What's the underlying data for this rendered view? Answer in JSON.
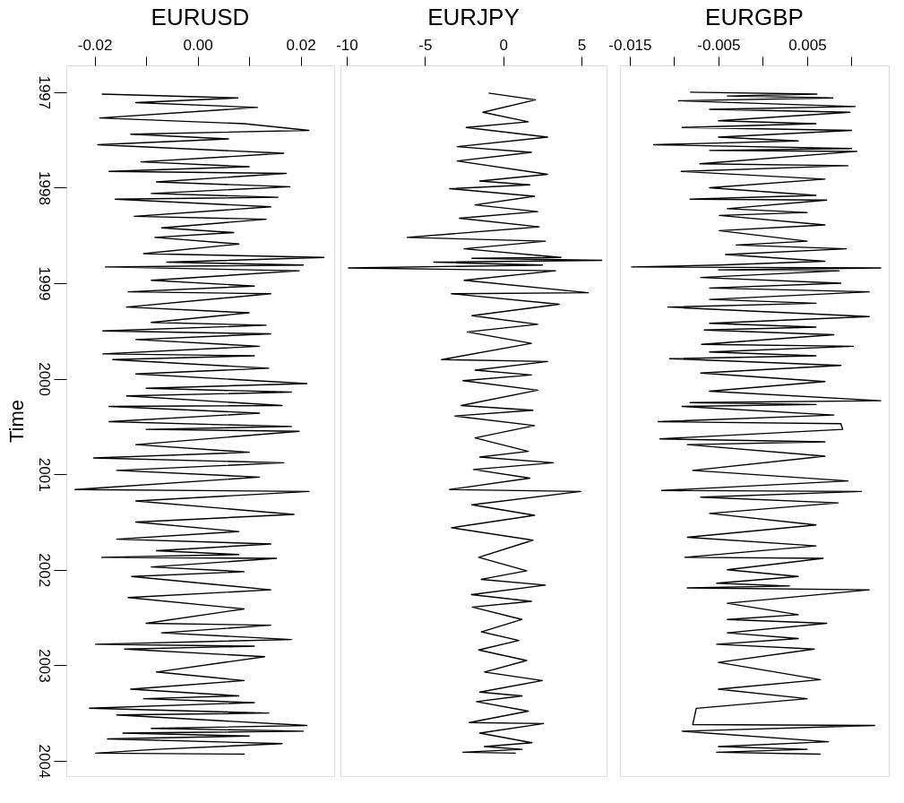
{
  "chart_data": [
    {
      "type": "line",
      "orientation": "horizontal",
      "title": "EURUSD",
      "ylabel": "Time",
      "color": "#000000",
      "grid": false,
      "x": [
        1997.02,
        1997.06,
        1997.11,
        1997.16,
        1997.27,
        1997.33,
        1997.4,
        1997.44,
        1997.49,
        1997.55,
        1997.64,
        1997.73,
        1997.78,
        1997.83,
        1997.85,
        1997.94,
        1997.99,
        1998.06,
        1998.1,
        1998.12,
        1998.2,
        1998.3,
        1998.33,
        1998.42,
        1998.47,
        1998.52,
        1998.59,
        1998.69,
        1998.73,
        1998.78,
        1998.81,
        1998.83,
        1998.87,
        1998.97,
        1999.03,
        1999.09,
        1999.11,
        1999.25,
        1999.31,
        1999.41,
        1999.44,
        1999.5,
        1999.53,
        1999.59,
        1999.66,
        1999.74,
        1999.76,
        1999.8,
        1999.89,
        1999.95,
        2000.05,
        2000.1,
        2000.14,
        2000.18,
        2000.28,
        2000.29,
        2000.36,
        2000.45,
        2000.5,
        2000.53,
        2000.55,
        2000.69,
        2000.77,
        2000.83,
        2000.88,
        2000.96,
        2001.03,
        2001.16,
        2001.18,
        2001.28,
        2001.42,
        2001.5,
        2001.6,
        2001.68,
        2001.73,
        2001.8,
        2001.84,
        2001.87,
        2001.88,
        2001.97,
        2002.02,
        2002.07,
        2002.21,
        2002.29,
        2002.41,
        2002.56,
        2002.58,
        2002.66,
        2002.73,
        2002.78,
        2002.8,
        2002.83,
        2002.91,
        2003.07,
        2003.16,
        2003.25,
        2003.32,
        2003.35,
        2003.39,
        2003.45,
        2003.5,
        2003.52,
        2003.63,
        2003.66,
        2003.69,
        2003.71,
        2003.74,
        2003.77,
        2003.82,
        2003.88,
        2003.92,
        2003.93
      ],
      "values": [
        -0.0186,
        0.0078,
        -0.012,
        0.0116,
        -0.019,
        0.009,
        0.0216,
        -0.013,
        0.006,
        -0.0194,
        0.0167,
        -0.011,
        0.01,
        -0.0172,
        0.0172,
        -0.008,
        0.0179,
        -0.009,
        0.0156,
        -0.016,
        0.0142,
        -0.0123,
        0.0133,
        -0.007,
        0.007,
        -0.0083,
        0.008,
        -0.0105,
        0.0245,
        -0.006,
        0.0205,
        -0.0179,
        0.0197,
        -0.009,
        0.011,
        -0.0135,
        0.0142,
        -0.0138,
        0.01,
        -0.009,
        0.0133,
        -0.0184,
        0.0142,
        -0.012,
        0.012,
        -0.0184,
        0.011,
        -0.0165,
        0.0138,
        -0.012,
        0.0212,
        -0.01,
        0.0182,
        -0.0138,
        0.0164,
        -0.0172,
        0.012,
        -0.0172,
        0.0182,
        -0.01,
        0.0197,
        -0.012,
        0.01,
        -0.0202,
        0.0167,
        -0.0157,
        0.012,
        -0.0238,
        0.0216,
        -0.012,
        0.0187,
        -0.012,
        0.008,
        -0.0157,
        0.0142,
        -0.008,
        0.008,
        -0.0186,
        0.0153,
        -0.009,
        0.009,
        -0.0128,
        0.0142,
        -0.0135,
        0.009,
        -0.01,
        0.0142,
        -0.007,
        0.0182,
        -0.0198,
        0.011,
        -0.0142,
        0.013,
        -0.008,
        0.009,
        -0.013,
        0.008,
        -0.0105,
        0.011,
        -0.021,
        0.0138,
        -0.0157,
        0.0212,
        -0.009,
        0.0205,
        -0.0145,
        0.01,
        -0.0175,
        0.0164,
        -0.008,
        -0.0198,
        0.0091
      ],
      "xlim": [
        -0.0255,
        0.0265
      ],
      "xticks": [
        {
          "value": -0.02,
          "label": "-0.02"
        },
        {
          "value": -0.01,
          "label": null
        },
        {
          "value": 0,
          "label": "0.00"
        },
        {
          "value": 0.01,
          "label": null
        },
        {
          "value": 0.02,
          "label": "0.02"
        }
      ],
      "ylim": [
        2004.16,
        1996.72
      ],
      "yticks": [
        1997,
        1998,
        1999,
        2000,
        2001,
        2002,
        2003,
        2004
      ]
    },
    {
      "type": "line",
      "orientation": "horizontal",
      "title": "EURJPY",
      "color": "#000000",
      "grid": false,
      "tick_labels": "x",
      "x": [
        1997.01,
        1997.08,
        1997.21,
        1997.31,
        1997.37,
        1997.47,
        1997.57,
        1997.63,
        1997.72,
        1997.86,
        1997.93,
        1997.97,
        1998.01,
        1998.09,
        1998.18,
        1998.25,
        1998.32,
        1998.41,
        1998.52,
        1998.56,
        1998.64,
        1998.73,
        1998.74,
        1998.76,
        1998.78,
        1998.81,
        1998.84,
        1998.87,
        1998.97,
        1999.1,
        1999.11,
        1999.22,
        1999.34,
        1999.43,
        1999.51,
        1999.63,
        1999.8,
        1999.82,
        1999.91,
        1999.96,
        2000.02,
        2000.12,
        2000.28,
        2000.33,
        2000.39,
        2000.49,
        2000.62,
        2000.76,
        2000.82,
        2000.88,
        2000.95,
        2001.04,
        2001.16,
        2001.18,
        2001.32,
        2001.43,
        2001.56,
        2001.69,
        2001.87,
        2002.01,
        2002.1,
        2002.16,
        2002.26,
        2002.33,
        2002.39,
        2002.52,
        2002.65,
        2002.74,
        2002.84,
        2002.95,
        2003.07,
        2003.16,
        2003.28,
        2003.32,
        2003.38,
        2003.48,
        2003.6,
        2003.61,
        2003.71,
        2003.81,
        2003.85,
        2003.88,
        2003.91,
        2003.92
      ],
      "values": [
        -0.94,
        2.06,
        -1.3,
        1.6,
        -2.37,
        2.83,
        -2.94,
        1.8,
        -2.94,
        2.83,
        -1.5,
        1.7,
        -3.43,
        2.0,
        -1.8,
        2.2,
        -2.8,
        2.3,
        -6.14,
        2.69,
        -2.5,
        3.69,
        -2.0,
        6.29,
        -4.43,
        2.5,
        -9.89,
        3.34,
        -2.5,
        5.43,
        -3.31,
        3.57,
        -2.0,
        2.2,
        -2.29,
        1.8,
        -3.94,
        2.83,
        -1.8,
        1.8,
        -2.57,
        2.2,
        -2.69,
        1.9,
        -3.09,
        2.0,
        -1.8,
        1.6,
        -1.5,
        3.2,
        -1.9,
        1.7,
        -3.43,
        4.94,
        -2.0,
        2.0,
        -3.31,
        1.9,
        -1.57,
        1.5,
        -1.4,
        2.69,
        -2.03,
        1.8,
        -1.97,
        1.2,
        -1.4,
        1.0,
        -1.57,
        1.5,
        -1.2,
        2.49,
        -1.5,
        1.2,
        -1.71,
        1.6,
        -2.17,
        2.57,
        -1.5,
        1.83,
        -1.2,
        1.2,
        -2.57,
        0.8
      ],
      "xlim": [
        -10.4,
        6.6
      ],
      "xticks": [
        -10,
        -5,
        0,
        5
      ],
      "ylim": [
        2004.16,
        1996.72
      ]
    },
    {
      "type": "line",
      "orientation": "horizontal",
      "title": "EURGBP",
      "color": "#000000",
      "grid": false,
      "tick_labels": "x",
      "x": [
        1997.0,
        1997.02,
        1997.04,
        1997.06,
        1997.09,
        1997.15,
        1997.18,
        1997.21,
        1997.3,
        1997.33,
        1997.37,
        1997.4,
        1997.47,
        1997.51,
        1997.55,
        1997.59,
        1997.61,
        1997.62,
        1997.75,
        1997.77,
        1997.83,
        1997.91,
        1998.0,
        1998.08,
        1998.12,
        1998.13,
        1998.22,
        1998.26,
        1998.29,
        1998.39,
        1998.45,
        1998.56,
        1998.6,
        1998.64,
        1998.7,
        1998.77,
        1998.81,
        1998.83,
        1998.84,
        1998.86,
        1998.87,
        1998.94,
        1999.0,
        1999.05,
        1999.09,
        1999.17,
        1999.21,
        1999.25,
        1999.35,
        1999.42,
        1999.46,
        1999.49,
        1999.54,
        1999.64,
        1999.66,
        1999.72,
        1999.76,
        1999.79,
        1999.86,
        1999.94,
        2000.03,
        2000.13,
        2000.23,
        2000.25,
        2000.27,
        2000.29,
        2000.38,
        2000.45,
        2000.47,
        2000.53,
        2000.63,
        2000.66,
        2000.69,
        2000.81,
        2000.96,
        2001.07,
        2001.17,
        2001.18,
        2001.24,
        2001.3,
        2001.41,
        2001.53,
        2001.66,
        2001.75,
        2001.87,
        2001.88,
        2002.0,
        2002.07,
        2002.14,
        2002.17,
        2002.19,
        2002.21,
        2002.35,
        2002.47,
        2002.52,
        2002.56,
        2002.66,
        2002.72,
        2002.78,
        2002.83,
        2002.97,
        2003.15,
        2003.25,
        2003.35,
        2003.45,
        2003.62,
        2003.63,
        2003.69,
        2003.8,
        2003.85,
        2003.88,
        2003.91,
        2003.93
      ],
      "values": [
        -0.0082,
        0.0061,
        -0.004,
        0.0079,
        -0.0095,
        0.0104,
        -0.006,
        0.0098,
        -0.005,
        0.006,
        -0.0091,
        0.01,
        -0.005,
        0.004,
        -0.0123,
        0.01,
        -0.006,
        0.0106,
        -0.0071,
        0.0096,
        -0.0092,
        0.007,
        -0.006,
        0.006,
        -0.0082,
        0.0072,
        -0.004,
        0.005,
        -0.0049,
        0.007,
        -0.0049,
        0.005,
        -0.003,
        0.0094,
        -0.0042,
        0.007,
        -0.005,
        -0.0148,
        0.0133,
        -0.005,
        0.0086,
        -0.007,
        0.0088,
        -0.006,
        0.012,
        -0.006,
        0.006,
        -0.0107,
        0.012,
        -0.006,
        0.006,
        -0.0066,
        0.008,
        -0.0069,
        0.0102,
        -0.006,
        0.006,
        -0.0105,
        0.0088,
        -0.007,
        0.007,
        -0.006,
        0.0133,
        -0.0082,
        0.006,
        -0.0091,
        0.008,
        -0.0118,
        0.0088,
        0.009,
        -0.0116,
        0.007,
        -0.0085,
        0.007,
        -0.0079,
        0.0096,
        -0.0114,
        0.0111,
        -0.007,
        0.0085,
        -0.006,
        0.006,
        -0.0085,
        0.006,
        -0.0088,
        0.0068,
        -0.004,
        0.004,
        -0.0052,
        0.003,
        -0.0085,
        0.012,
        -0.004,
        0.004,
        -0.004,
        0.0072,
        -0.004,
        0.004,
        -0.0052,
        0.0058,
        -0.005,
        0.0065,
        -0.005,
        0.005,
        -0.0075,
        -0.0079,
        0.0126,
        -0.0091,
        0.0074,
        -0.005,
        0.005,
        -0.0052,
        0.0065
      ],
      "xlim": [
        -0.0161,
        0.0142
      ],
      "xticks": [
        {
          "value": -0.015,
          "label": "-0.015"
        },
        {
          "value": -0.01,
          "label": null
        },
        {
          "value": -0.005,
          "label": "-0.005"
        },
        {
          "value": 0,
          "label": null
        },
        {
          "value": 0.005,
          "label": "0.005"
        },
        {
          "value": 0.01,
          "label": null
        }
      ],
      "ylim": [
        2004.16,
        1996.72
      ]
    }
  ]
}
